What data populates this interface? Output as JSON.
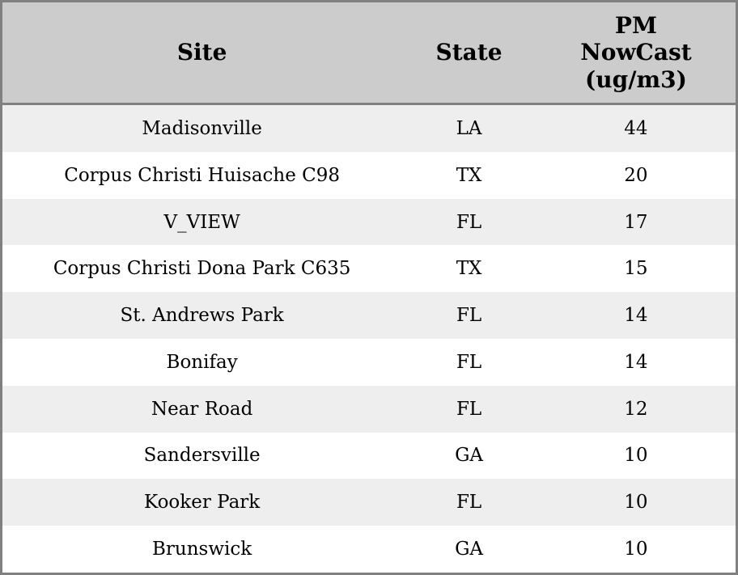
{
  "table": {
    "columns": [
      {
        "key": "site",
        "label": "Site"
      },
      {
        "key": "state",
        "label": "State"
      },
      {
        "key": "pm",
        "label": "PM\nNowCast\n(ug/m3)"
      }
    ],
    "rows": [
      {
        "site": "Madisonville",
        "state": "LA",
        "pm": "44"
      },
      {
        "site": "Corpus Christi Huisache C98",
        "state": "TX",
        "pm": "20"
      },
      {
        "site": "V_VIEW",
        "state": "FL",
        "pm": "17"
      },
      {
        "site": "Corpus Christi Dona Park C635",
        "state": "TX",
        "pm": "15"
      },
      {
        "site": "St. Andrews Park",
        "state": "FL",
        "pm": "14"
      },
      {
        "site": "Bonifay",
        "state": "FL",
        "pm": "14"
      },
      {
        "site": "Near Road",
        "state": "FL",
        "pm": "12"
      },
      {
        "site": "Sandersville",
        "state": "GA",
        "pm": "10"
      },
      {
        "site": "Kooker Park",
        "state": "FL",
        "pm": "10"
      },
      {
        "site": "Brunswick",
        "state": "GA",
        "pm": "10"
      }
    ],
    "colors": {
      "header_bg": "#cccccc",
      "stripe_bg": "#eeeeee",
      "row_bg": "#ffffff",
      "border": "#808080",
      "text": "#000000"
    }
  }
}
